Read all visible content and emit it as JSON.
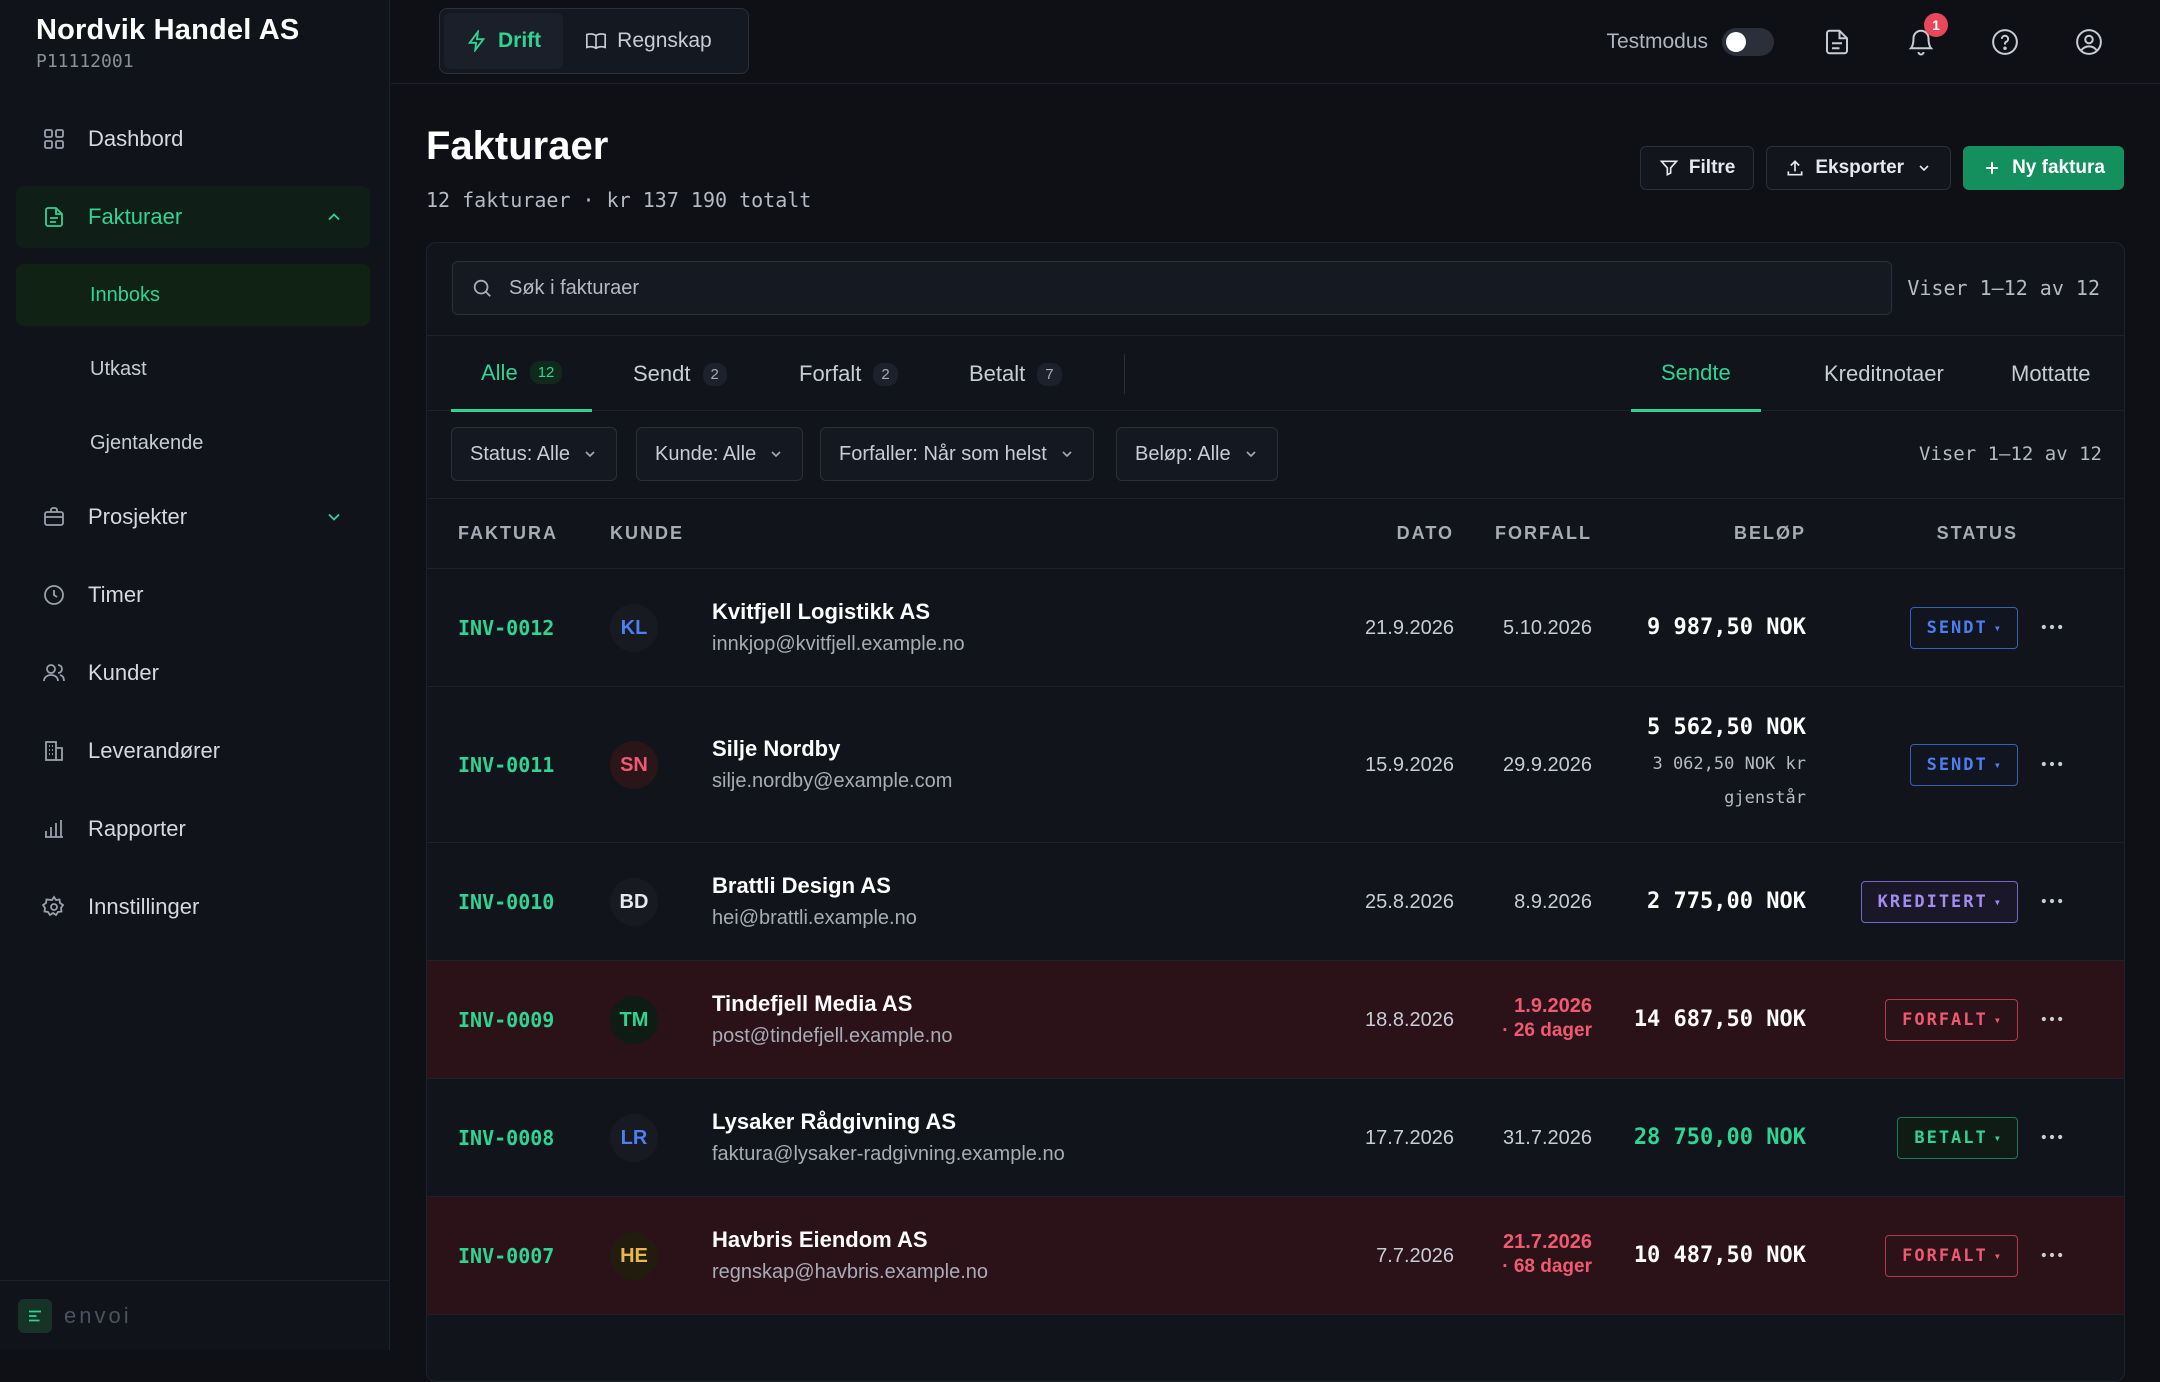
{
  "brand": {
    "name": "Nordvik Handel AS",
    "id": "P11112001"
  },
  "sidebar": {
    "items": [
      {
        "label": "Dashbord"
      },
      {
        "label": "Fakturaer"
      },
      {
        "label": "Prosjekter"
      },
      {
        "label": "Timer"
      },
      {
        "label": "Kunder"
      },
      {
        "label": "Leverandører"
      },
      {
        "label": "Rapporter"
      },
      {
        "label": "Innstillinger"
      }
    ],
    "sub_items": [
      {
        "label": "Innboks"
      },
      {
        "label": "Utkast"
      },
      {
        "label": "Gjentakende"
      }
    ],
    "footer": "envoi"
  },
  "topbar": {
    "tabs": [
      {
        "label": "Drift"
      },
      {
        "label": "Regnskap"
      }
    ],
    "test_mode_label": "Testmodus",
    "notification_count": "1"
  },
  "page": {
    "title": "Fakturaer",
    "subtitle": "12 fakturaer · kr 137 190 totalt",
    "actions": {
      "filter": "Filtre",
      "export": "Eksporter",
      "new": "Ny faktura"
    }
  },
  "search": {
    "placeholder": "Søk i fakturaer",
    "count": "Viser 1–12 av 12"
  },
  "status_tabs": [
    {
      "label": "Alle",
      "count": "12"
    },
    {
      "label": "Sendt",
      "count": "2"
    },
    {
      "label": "Forfalt",
      "count": "2"
    },
    {
      "label": "Betalt",
      "count": "7"
    }
  ],
  "type_tabs": [
    {
      "label": "Sendte"
    },
    {
      "label": "Kreditnotaer"
    },
    {
      "label": "Mottatte"
    }
  ],
  "filters": {
    "status": "Status: Alle",
    "customer": "Kunde: Alle",
    "due": "Forfaller: Når som helst",
    "amount": "Beløp: Alle",
    "count": "Viser 1–12 av 12"
  },
  "table": {
    "headers": {
      "invoice": "FAKTURA",
      "customer": "KUNDE",
      "date": "DATO",
      "due": "FORFALL",
      "amount": "BELØP",
      "status": "STATUS"
    },
    "rows": [
      {
        "id": "INV-0012",
        "initials": "KL",
        "initials_color": "#4e7ff0",
        "name": "Kvitfjell Logistikk AS",
        "email": "innkjop@kvitfjell.example.no",
        "date": "21.9.2026",
        "due": "5.10.2026",
        "amount": "9 987,50 NOK",
        "status": "SENDT"
      },
      {
        "id": "INV-0011",
        "initials": "SN",
        "initials_color": "#f05a70",
        "name": "Silje Nordby",
        "email": "silje.nordby@example.com",
        "date": "15.9.2026",
        "due": "29.9.2026",
        "amount": "5 562,50 NOK",
        "amount_sub1": "3 062,50 NOK kr",
        "amount_sub2": "gjenstår",
        "status": "SENDT"
      },
      {
        "id": "INV-0010",
        "initials": "BD",
        "initials_color": "#e6e8ee",
        "name": "Brattli Design AS",
        "email": "hei@brattli.example.no",
        "date": "25.8.2026",
        "due": "8.9.2026",
        "amount": "2 775,00 NOK",
        "status": "KREDITERT"
      },
      {
        "id": "INV-0009",
        "initials": "TM",
        "initials_color": "#2fd491",
        "name": "Tindefjell Media AS",
        "email": "post@tindefjell.example.no",
        "date": "18.8.2026",
        "due": "1.9.2026",
        "due_sub": "· 26 dager",
        "amount": "14 687,50 NOK",
        "status": "FORFALT"
      },
      {
        "id": "INV-0008",
        "initials": "LR",
        "initials_color": "#4e7ff0",
        "name": "Lysaker Rådgivning AS",
        "email": "faktura@lysaker-radgivning.example.no",
        "date": "17.7.2026",
        "due": "31.7.2026",
        "amount": "28 750,00 NOK",
        "status": "BETALT"
      },
      {
        "id": "INV-0007",
        "initials": "HE",
        "initials_color": "#e8b84a",
        "name": "Havbris Eiendom AS",
        "email": "regnskap@havbris.example.no",
        "date": "7.7.2026",
        "due": "21.7.2026",
        "due_sub": "· 68 dager",
        "amount": "10 487,50 NOK",
        "status": "FORFALT"
      }
    ]
  }
}
